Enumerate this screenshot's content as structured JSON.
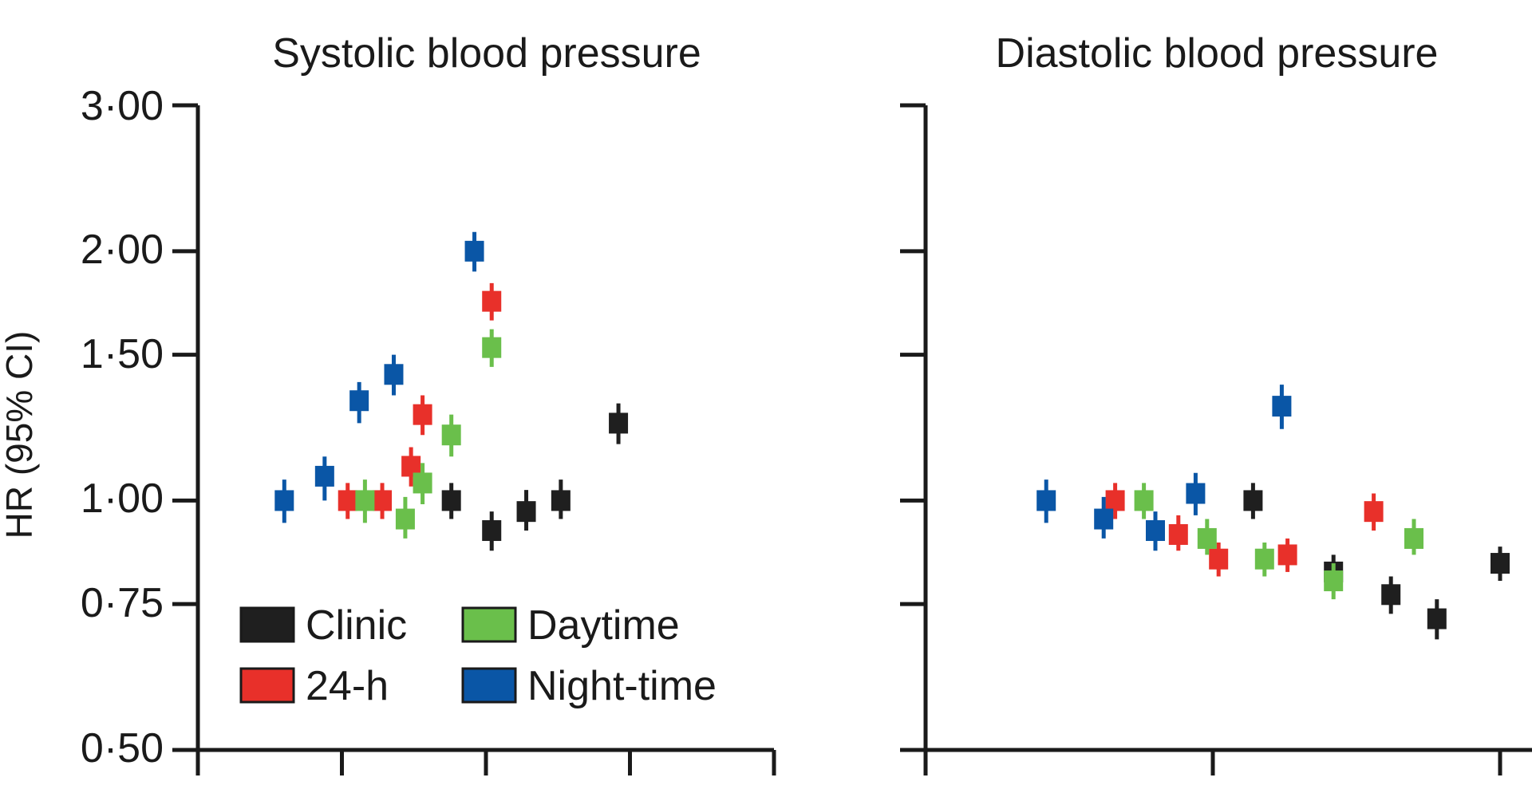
{
  "chart_data": [
    {
      "type": "scatter",
      "title": "Systolic blood pressure",
      "ylabel": "HR (95% CI)",
      "yscale": "log",
      "ylim": [
        0.5,
        3.0
      ],
      "yticks": [
        3.0,
        2.0,
        1.5,
        1.0,
        0.75,
        0.5
      ],
      "ytick_labels": [
        "3·00",
        "2·00",
        "1·50",
        "1·00",
        "0·75",
        "0·50"
      ],
      "x_axis_ticks": 5,
      "legend": {
        "placement": "bottom-left",
        "entries": [
          {
            "name": "Clinic",
            "color": "#1f1f1f"
          },
          {
            "name": "Daytime",
            "color": "#6abf4b"
          },
          {
            "name": "24-h",
            "color": "#e8302a"
          },
          {
            "name": "Night-time",
            "color": "#0a56a6"
          }
        ]
      },
      "series": [
        {
          "name": "Clinic",
          "color": "#1f1f1f",
          "x": [
            0.44,
            0.51,
            0.57,
            0.63,
            0.73
          ],
          "y": [
            1.0,
            0.92,
            0.97,
            1.0,
            1.24
          ],
          "ci_low": [
            0.95,
            0.87,
            0.92,
            0.95,
            1.17
          ],
          "ci_high": [
            1.05,
            0.97,
            1.03,
            1.06,
            1.31
          ]
        },
        {
          "name": "24-h",
          "color": "#e8302a",
          "x": [
            0.26,
            0.32,
            0.37,
            0.39,
            0.51
          ],
          "y": [
            1.0,
            1.0,
            1.1,
            1.27,
            1.74
          ],
          "ci_low": [
            0.95,
            0.95,
            1.04,
            1.2,
            1.65
          ],
          "ci_high": [
            1.05,
            1.05,
            1.16,
            1.34,
            1.83
          ]
        },
        {
          "name": "Daytime",
          "color": "#6abf4b",
          "x": [
            0.29,
            0.36,
            0.39,
            0.44,
            0.51
          ],
          "y": [
            1.0,
            0.95,
            1.05,
            1.2,
            1.53
          ],
          "ci_low": [
            0.94,
            0.9,
            0.99,
            1.13,
            1.45
          ],
          "ci_high": [
            1.06,
            1.01,
            1.11,
            1.27,
            1.61
          ]
        },
        {
          "name": "Night-time",
          "color": "#0a56a6",
          "x": [
            0.15,
            0.22,
            0.28,
            0.34,
            0.48
          ],
          "y": [
            1.0,
            1.07,
            1.32,
            1.42,
            2.0
          ],
          "ci_low": [
            0.94,
            1.0,
            1.24,
            1.34,
            1.89
          ],
          "ci_high": [
            1.06,
            1.13,
            1.39,
            1.5,
            2.11
          ]
        }
      ]
    },
    {
      "type": "scatter",
      "title": "Diastolic blood pressure",
      "yscale": "log",
      "ylim": [
        0.5,
        3.0
      ],
      "yticks": [
        3.0,
        2.0,
        1.5,
        1.0,
        0.75,
        0.5
      ],
      "x_axis_ticks": 3,
      "series": [
        {
          "name": "Clinic",
          "color": "#1f1f1f",
          "x": [
            0.57,
            0.71,
            0.81,
            0.89,
            1.0
          ],
          "y": [
            1.0,
            0.82,
            0.77,
            0.72,
            0.84
          ],
          "ci_low": [
            0.95,
            0.78,
            0.73,
            0.68,
            0.8
          ],
          "ci_high": [
            1.05,
            0.86,
            0.81,
            0.76,
            0.88
          ]
        },
        {
          "name": "24-h",
          "color": "#e8302a",
          "x": [
            0.33,
            0.44,
            0.51,
            0.63,
            0.78
          ],
          "y": [
            1.0,
            0.91,
            0.85,
            0.86,
            0.97
          ],
          "ci_low": [
            0.95,
            0.87,
            0.81,
            0.82,
            0.92
          ],
          "ci_high": [
            1.05,
            0.96,
            0.89,
            0.9,
            1.02
          ]
        },
        {
          "name": "Daytime",
          "color": "#6abf4b",
          "x": [
            0.38,
            0.49,
            0.59,
            0.71,
            0.85
          ],
          "y": [
            1.0,
            0.9,
            0.85,
            0.8,
            0.9
          ],
          "ci_low": [
            0.95,
            0.86,
            0.81,
            0.76,
            0.86
          ],
          "ci_high": [
            1.05,
            0.95,
            0.89,
            0.84,
            0.95
          ]
        },
        {
          "name": "Night-time",
          "color": "#0a56a6",
          "x": [
            0.21,
            0.31,
            0.4,
            0.47,
            0.62
          ],
          "y": [
            1.0,
            0.95,
            0.92,
            1.02,
            1.3
          ],
          "ci_low": [
            0.94,
            0.9,
            0.87,
            0.96,
            1.22
          ],
          "ci_high": [
            1.06,
            1.01,
            0.97,
            1.08,
            1.38
          ]
        }
      ]
    }
  ]
}
